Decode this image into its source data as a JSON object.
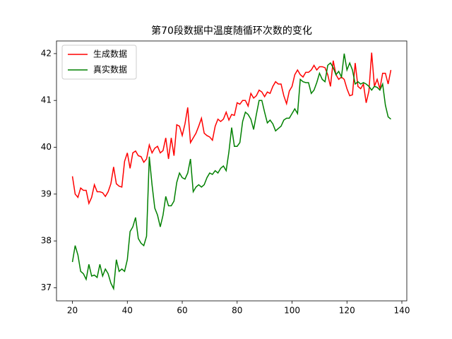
{
  "chart_data": {
    "type": "line",
    "title": "第70段数据中温度随循环次数的变化",
    "x": [
      20,
      21,
      22,
      23,
      24,
      25,
      26,
      27,
      28,
      29,
      30,
      31,
      32,
      33,
      34,
      35,
      36,
      37,
      38,
      39,
      40,
      41,
      42,
      43,
      44,
      45,
      46,
      47,
      48,
      49,
      50,
      51,
      52,
      53,
      54,
      55,
      56,
      57,
      58,
      59,
      60,
      61,
      62,
      63,
      64,
      65,
      66,
      67,
      68,
      69,
      70,
      71,
      72,
      73,
      74,
      75,
      76,
      77,
      78,
      79,
      80,
      81,
      82,
      83,
      84,
      85,
      86,
      87,
      88,
      89,
      90,
      91,
      92,
      93,
      94,
      95,
      96,
      97,
      98,
      99,
      100,
      101,
      102,
      103,
      104,
      105,
      106,
      107,
      108,
      109,
      110,
      111,
      112,
      113,
      114,
      115,
      116,
      117,
      118,
      119,
      120,
      121,
      122,
      123,
      124,
      125,
      126,
      127,
      128,
      129,
      130,
      131,
      132,
      133,
      134,
      135,
      136
    ],
    "series": [
      {
        "name": "生成数据",
        "color": "#ff0000",
        "values": [
          39.38,
          39.0,
          38.93,
          39.13,
          39.08,
          39.08,
          38.8,
          38.93,
          39.2,
          39.05,
          39.05,
          39.03,
          38.95,
          39.05,
          39.22,
          39.58,
          39.22,
          39.17,
          39.15,
          39.7,
          39.88,
          39.55,
          39.88,
          39.92,
          39.82,
          39.8,
          39.68,
          39.75,
          40.05,
          39.88,
          39.98,
          40.02,
          39.88,
          39.93,
          40.2,
          39.75,
          40.2,
          39.82,
          40.48,
          40.45,
          40.25,
          40.5,
          40.85,
          40.1,
          40.2,
          40.3,
          40.45,
          40.62,
          40.3,
          40.25,
          40.22,
          40.15,
          40.45,
          40.6,
          40.55,
          40.6,
          40.75,
          40.58,
          40.7,
          40.68,
          40.95,
          40.92,
          41.0,
          41.0,
          40.88,
          41.15,
          41.05,
          41.1,
          41.22,
          41.18,
          41.08,
          41.18,
          41.15,
          41.3,
          41.4,
          41.35,
          41.35,
          41.1,
          40.93,
          41.2,
          41.3,
          41.55,
          41.65,
          41.55,
          41.5,
          41.6,
          41.6,
          41.65,
          41.75,
          41.65,
          41.72,
          41.72,
          41.7,
          41.55,
          41.3,
          41.85,
          41.55,
          41.45,
          41.5,
          41.45,
          41.25,
          41.1,
          41.12,
          41.8,
          41.3,
          41.25,
          41.35,
          40.95,
          41.2,
          42.02,
          41.3,
          41.45,
          41.25,
          41.58,
          41.58,
          41.35,
          41.65
        ]
      },
      {
        "name": "真实数据",
        "color": "#008000",
        "values": [
          37.55,
          37.9,
          37.7,
          37.35,
          37.3,
          37.18,
          37.5,
          37.25,
          37.27,
          37.22,
          37.5,
          37.25,
          37.4,
          37.3,
          37.1,
          36.98,
          37.6,
          37.35,
          37.4,
          37.35,
          37.6,
          38.2,
          38.3,
          38.5,
          38.05,
          37.95,
          37.9,
          38.1,
          39.8,
          39.2,
          38.7,
          38.55,
          38.3,
          38.55,
          38.95,
          38.75,
          38.75,
          38.85,
          39.25,
          39.45,
          39.35,
          39.32,
          39.45,
          39.75,
          39.05,
          39.15,
          39.2,
          39.15,
          39.2,
          39.35,
          39.45,
          39.42,
          39.5,
          39.45,
          39.55,
          39.6,
          39.5,
          39.9,
          40.42,
          40.02,
          40.02,
          40.1,
          40.55,
          40.75,
          40.7,
          40.6,
          40.38,
          40.7,
          41.0,
          41.0,
          40.75,
          40.52,
          40.58,
          40.5,
          40.35,
          40.4,
          40.45,
          40.58,
          40.62,
          40.62,
          40.72,
          40.82,
          40.72,
          41.45,
          41.4,
          41.38,
          41.38,
          41.15,
          41.22,
          41.38,
          41.58,
          41.45,
          41.4,
          41.75,
          41.8,
          41.7,
          41.55,
          41.62,
          41.5,
          42.0,
          41.65,
          41.8,
          41.65,
          41.35,
          41.4,
          41.35,
          41.38,
          41.35,
          41.3,
          41.22,
          41.3,
          41.28,
          41.22,
          41.35,
          40.9,
          40.65,
          40.6
        ]
      }
    ],
    "xlim": [
      14.2,
      141.8
    ],
    "ylim": [
      36.72,
      42.27
    ],
    "xticks": [
      20,
      40,
      60,
      80,
      100,
      120,
      140
    ],
    "yticks": [
      37,
      38,
      39,
      40,
      41,
      42
    ],
    "grid": false,
    "legend": "upper left"
  }
}
